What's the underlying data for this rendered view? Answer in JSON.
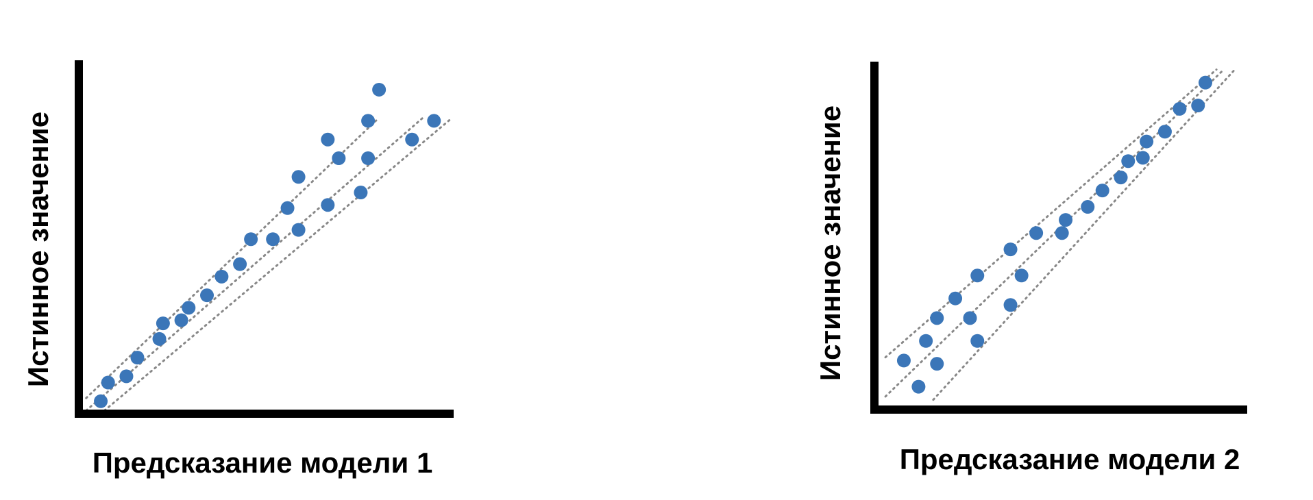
{
  "colors": {
    "point": "#3b76b8",
    "axis": "#000000",
    "guide": "#888888",
    "background": "#ffffff"
  },
  "chart_data": [
    {
      "type": "scatter",
      "xlabel": "Предсказание модели 1",
      "ylabel": "Истинное значение",
      "grid": false,
      "points": [
        {
          "x": 4,
          "y": 3
        },
        {
          "x": 6,
          "y": 9
        },
        {
          "x": 11,
          "y": 11
        },
        {
          "x": 14,
          "y": 17
        },
        {
          "x": 20,
          "y": 23
        },
        {
          "x": 21,
          "y": 28
        },
        {
          "x": 26,
          "y": 29
        },
        {
          "x": 28,
          "y": 33
        },
        {
          "x": 33,
          "y": 37
        },
        {
          "x": 37,
          "y": 43
        },
        {
          "x": 42,
          "y": 47
        },
        {
          "x": 45,
          "y": 55
        },
        {
          "x": 51,
          "y": 55
        },
        {
          "x": 55,
          "y": 65
        },
        {
          "x": 58,
          "y": 58
        },
        {
          "x": 58,
          "y": 75
        },
        {
          "x": 66,
          "y": 66
        },
        {
          "x": 66,
          "y": 87
        },
        {
          "x": 69,
          "y": 81
        },
        {
          "x": 75,
          "y": 70
        },
        {
          "x": 77,
          "y": 81
        },
        {
          "x": 77,
          "y": 93
        },
        {
          "x": 80,
          "y": 103
        },
        {
          "x": 89,
          "y": 87
        },
        {
          "x": 95,
          "y": 93
        }
      ],
      "guide_lines": [
        {
          "x": [
            0,
            80
          ],
          "y": [
            4,
            94
          ]
        },
        {
          "x": [
            0,
            92
          ],
          "y": [
            0,
            94
          ]
        },
        {
          "x": [
            5,
            100
          ],
          "y": [
            0,
            94
          ]
        }
      ],
      "xlim": [
        -2,
        100
      ],
      "ylim": [
        -1,
        112
      ]
    },
    {
      "type": "scatter",
      "xlabel": "Предсказание модели 2",
      "ylabel": "Истинное значение",
      "grid": false,
      "points": [
        {
          "x": 7,
          "y": 14
        },
        {
          "x": 11,
          "y": 6
        },
        {
          "x": 13,
          "y": 20
        },
        {
          "x": 16,
          "y": 13
        },
        {
          "x": 16,
          "y": 27
        },
        {
          "x": 21,
          "y": 33
        },
        {
          "x": 25,
          "y": 27
        },
        {
          "x": 27,
          "y": 20
        },
        {
          "x": 27,
          "y": 40
        },
        {
          "x": 36,
          "y": 31
        },
        {
          "x": 36,
          "y": 48
        },
        {
          "x": 39,
          "y": 40
        },
        {
          "x": 43,
          "y": 53
        },
        {
          "x": 50,
          "y": 53
        },
        {
          "x": 51,
          "y": 57
        },
        {
          "x": 57,
          "y": 61
        },
        {
          "x": 61,
          "y": 66
        },
        {
          "x": 66,
          "y": 70
        },
        {
          "x": 68,
          "y": 75
        },
        {
          "x": 72,
          "y": 76
        },
        {
          "x": 73,
          "y": 81
        },
        {
          "x": 78,
          "y": 84
        },
        {
          "x": 82,
          "y": 91
        },
        {
          "x": 87,
          "y": 92
        },
        {
          "x": 89,
          "y": 99
        }
      ],
      "guide_lines": [
        {
          "x": [
            2,
            92
          ],
          "y": [
            15,
            103
          ]
        },
        {
          "x": [
            2,
            94
          ],
          "y": [
            3,
            103
          ]
        },
        {
          "x": [
            15,
            97
          ],
          "y": [
            2,
            103
          ]
        }
      ],
      "xlim": [
        -1,
        100
      ],
      "ylim": [
        -1,
        105
      ]
    }
  ]
}
